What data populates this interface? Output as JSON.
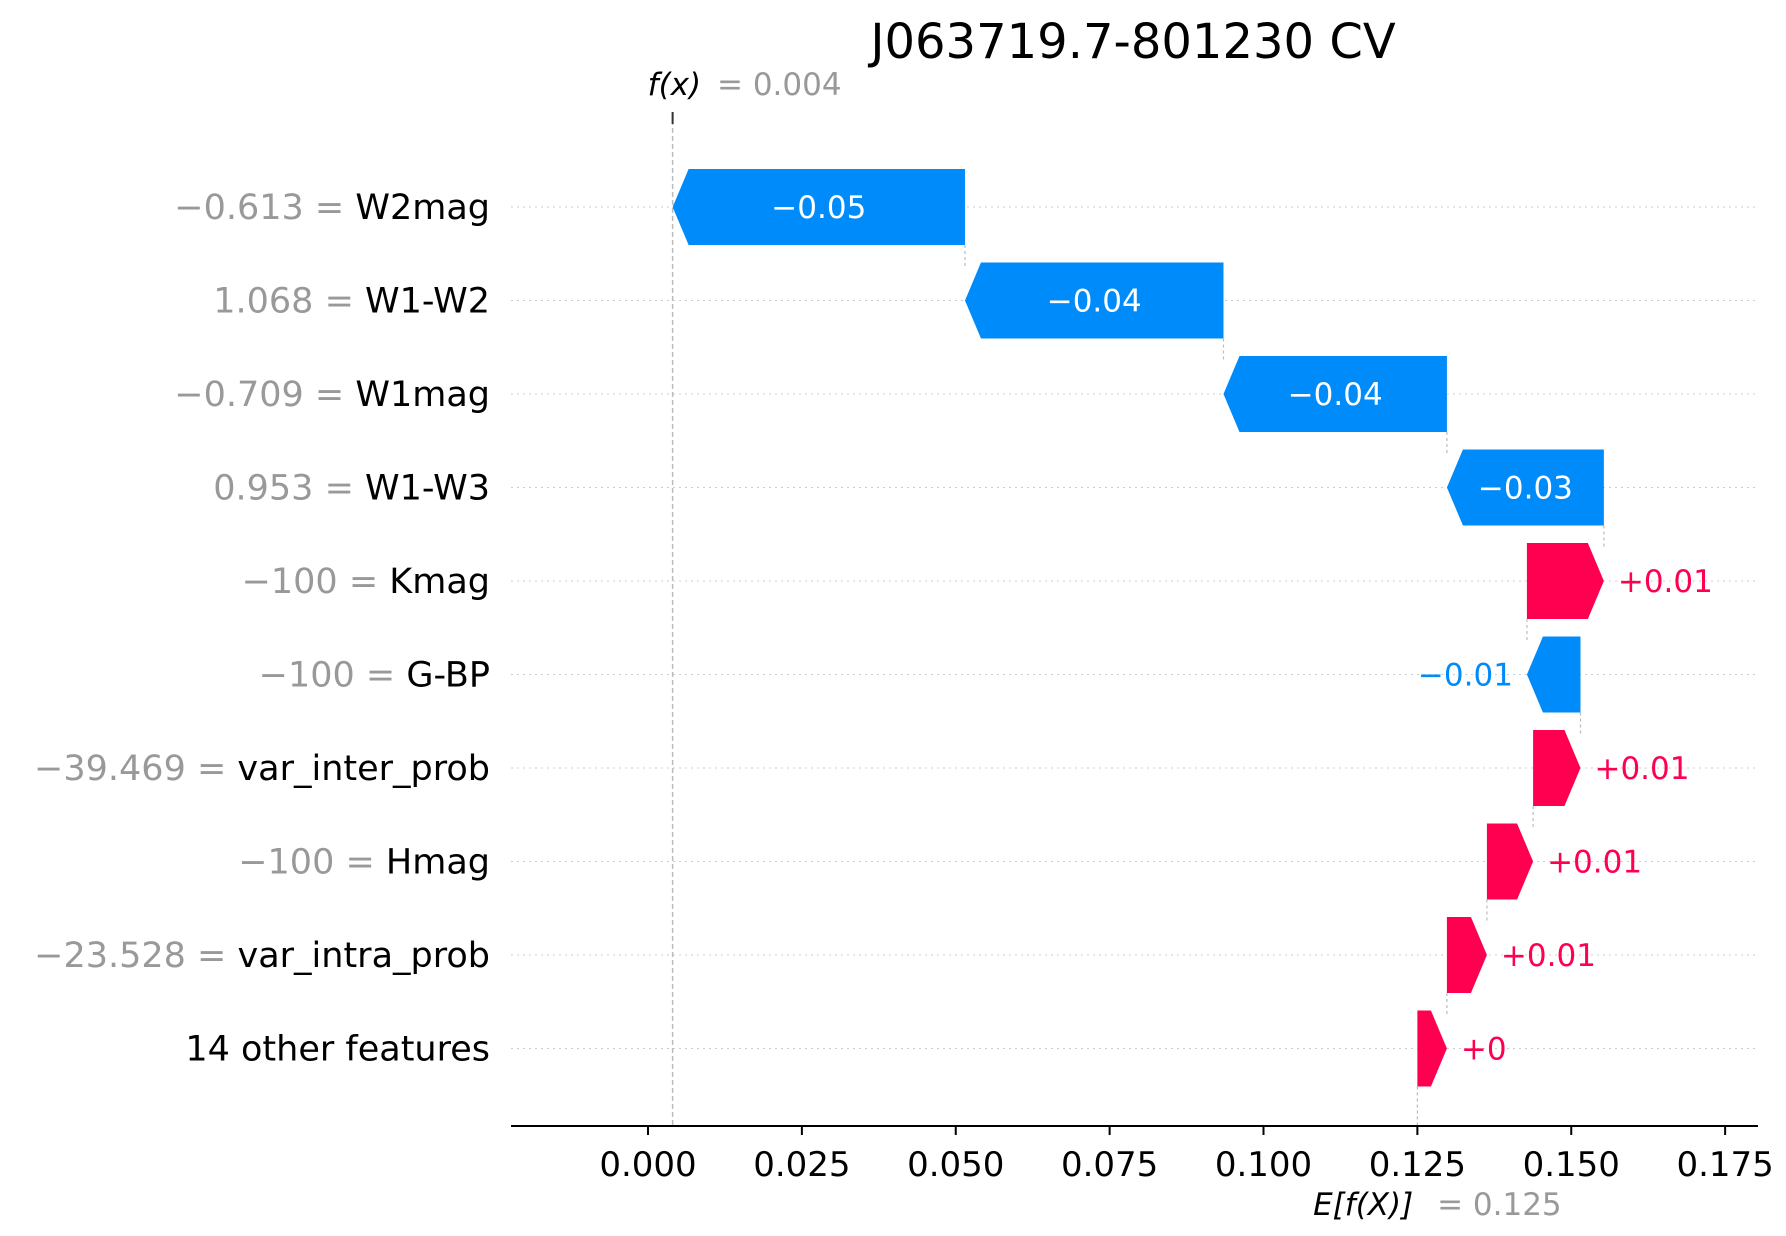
{
  "chart_data": {
    "type": "waterfall",
    "title": "J063719.7-801230 CV",
    "fx": {
      "label": "f(x)",
      "value_text": "= 0.004",
      "value": 0.004
    },
    "base": {
      "label": "E[f(X)]",
      "value_text": "= 0.125",
      "value": 0.125
    },
    "xlim": [
      -0.026,
      0.177
    ],
    "xticks": [
      0.0,
      0.025,
      0.05,
      0.075,
      0.1,
      0.125,
      0.15,
      0.175
    ],
    "xtick_labels": [
      "0.000",
      "0.025",
      "0.050",
      "0.075",
      "0.100",
      "0.125",
      "0.150",
      "0.175"
    ],
    "colors": {
      "positive": "#ff0051",
      "negative": "#008bfb",
      "value_gray": "#999999"
    },
    "features": [
      {
        "value": "−0.613",
        "name": "W2mag",
        "start": 0.0515,
        "end": 0.004,
        "label": "−0.05"
      },
      {
        "value": "1.068",
        "name": "W1-W2",
        "start": 0.0935,
        "end": 0.0515,
        "label": "−0.04"
      },
      {
        "value": "−0.709",
        "name": "W1mag",
        "start": 0.1298,
        "end": 0.0935,
        "label": "−0.04"
      },
      {
        "value": "0.953",
        "name": "W1-W3",
        "start": 0.1553,
        "end": 0.1298,
        "label": "−0.03"
      },
      {
        "value": "−100",
        "name": "Kmag",
        "start": 0.1428,
        "end": 0.1553,
        "label": "+0.01"
      },
      {
        "value": "−100",
        "name": "G-BP",
        "start": 0.1515,
        "end": 0.1428,
        "label": "−0.01"
      },
      {
        "value": "−39.469",
        "name": "var_inter_prob",
        "start": 0.1438,
        "end": 0.1515,
        "label": "+0.01"
      },
      {
        "value": "−100",
        "name": "Hmag",
        "start": 0.1363,
        "end": 0.1438,
        "label": "+0.01"
      },
      {
        "value": "−23.528",
        "name": "var_intra_prob",
        "start": 0.1298,
        "end": 0.1363,
        "label": "+0.01"
      },
      {
        "value": "",
        "name": "14 other features",
        "start": 0.125,
        "end": 0.1298,
        "label": "+0"
      }
    ]
  }
}
